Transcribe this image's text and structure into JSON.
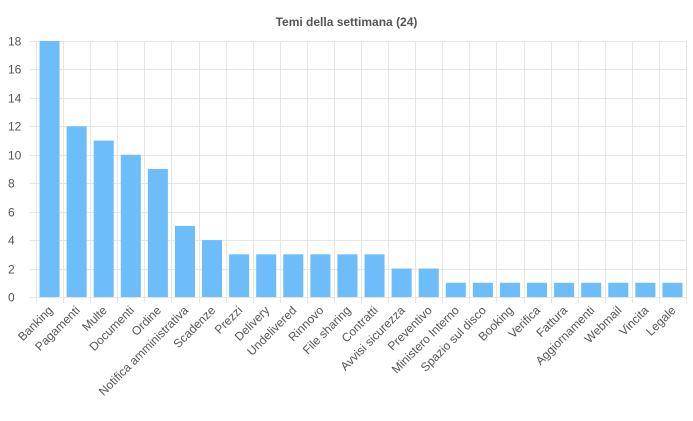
{
  "chart_data": {
    "type": "bar",
    "title": "Temi della settimana (24)",
    "xlabel": "",
    "ylabel": "",
    "categories": [
      "Banking",
      "Pagamenti",
      "Multe",
      "Documenti",
      "Ordine",
      "Notifica amministrativa",
      "Scadenze",
      "Prezzi",
      "Delivery",
      "Undelivered",
      "Rinnovo",
      "File sharing",
      "Contratti",
      "Avvisi sicurezza",
      "Preventivo",
      "Ministero Interno",
      "Spazio sul disco",
      "Booking",
      "Verifica",
      "Fattura",
      "Aggiornamenti",
      "Webmail",
      "Vincita",
      "Legale"
    ],
    "values": [
      18,
      12,
      11,
      10,
      9,
      5,
      4,
      3,
      3,
      3,
      3,
      3,
      3,
      2,
      2,
      1,
      1,
      1,
      1,
      1,
      1,
      1,
      1,
      1
    ],
    "ylim": [
      0,
      18
    ],
    "yticks": [
      0,
      2,
      4,
      6,
      8,
      10,
      12,
      14,
      16,
      18
    ],
    "grid": true,
    "legend": "none",
    "bar_color": "#6cbdfa",
    "grid_color": "#e5e5e5"
  }
}
